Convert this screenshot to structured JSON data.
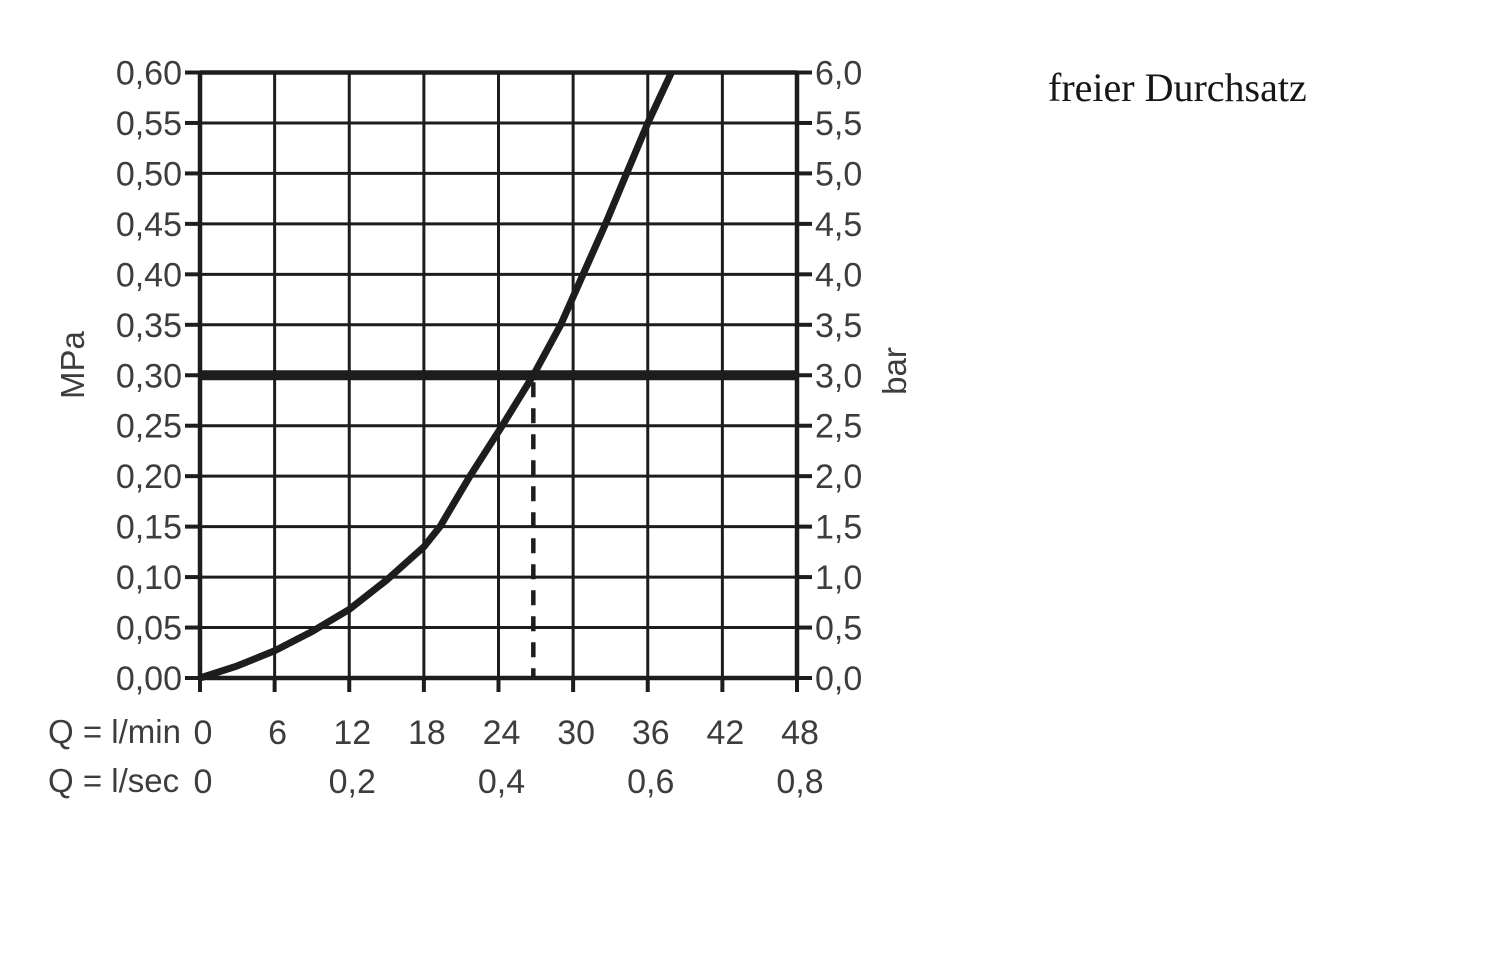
{
  "chart_data": {
    "type": "line",
    "title": "freier Durchsatz",
    "y_axis_left": {
      "label": "MPa",
      "min": 0,
      "max": 0.6,
      "tick_step": 0.05,
      "tick_labels": [
        "0,00",
        "0,05",
        "0,10",
        "0,15",
        "0,20",
        "0,25",
        "0,30",
        "0,35",
        "0,40",
        "0,45",
        "0,50",
        "0,55",
        "0,60"
      ]
    },
    "y_axis_right": {
      "label": "bar",
      "min": 0,
      "max": 6.0,
      "tick_step": 0.5,
      "tick_labels": [
        "0,0",
        "0,5",
        "1,0",
        "1,5",
        "2,0",
        "2,5",
        "3,0",
        "3,5",
        "4,0",
        "4,5",
        "5,0",
        "5,5",
        "6,0"
      ]
    },
    "x_axis": {
      "label": "Q = l/min",
      "min": 0,
      "max": 48,
      "tick_step": 6,
      "tick_labels": [
        "0",
        "6",
        "12",
        "18",
        "24",
        "30",
        "36",
        "42",
        "48"
      ]
    },
    "x_axis_secondary": {
      "label": "Q = l/sec",
      "ticks": [
        {
          "label": "0",
          "x_lmin": 0
        },
        {
          "label": "0,2",
          "x_lmin": 12
        },
        {
          "label": "0,4",
          "x_lmin": 24
        },
        {
          "label": "0,6",
          "x_lmin": 36
        },
        {
          "label": "0,8",
          "x_lmin": 48
        }
      ]
    },
    "series": [
      {
        "name": "flow-curve",
        "points_lmin_mpa": [
          [
            0,
            0.0
          ],
          [
            3,
            0.012
          ],
          [
            6,
            0.027
          ],
          [
            9,
            0.046
          ],
          [
            12,
            0.068
          ],
          [
            15,
            0.097
          ],
          [
            18,
            0.13
          ],
          [
            19.3,
            0.15
          ],
          [
            21.7,
            0.2
          ],
          [
            24.3,
            0.25
          ],
          [
            26.8,
            0.3
          ],
          [
            29,
            0.35
          ],
          [
            30.8,
            0.4
          ],
          [
            32.6,
            0.45
          ],
          [
            34.3,
            0.5
          ],
          [
            36,
            0.55
          ],
          [
            37.9,
            0.6
          ]
        ]
      }
    ],
    "reference_line": {
      "mpa": 0.3,
      "bar": 3.0
    },
    "dashed_marker": {
      "x_lmin": 26.8
    },
    "grid": true,
    "legend": "none",
    "colors": {
      "line": "#1d1d1b",
      "tick_text": "#3d3d3d",
      "title_text": "#161616",
      "background": "#ffffff"
    }
  }
}
